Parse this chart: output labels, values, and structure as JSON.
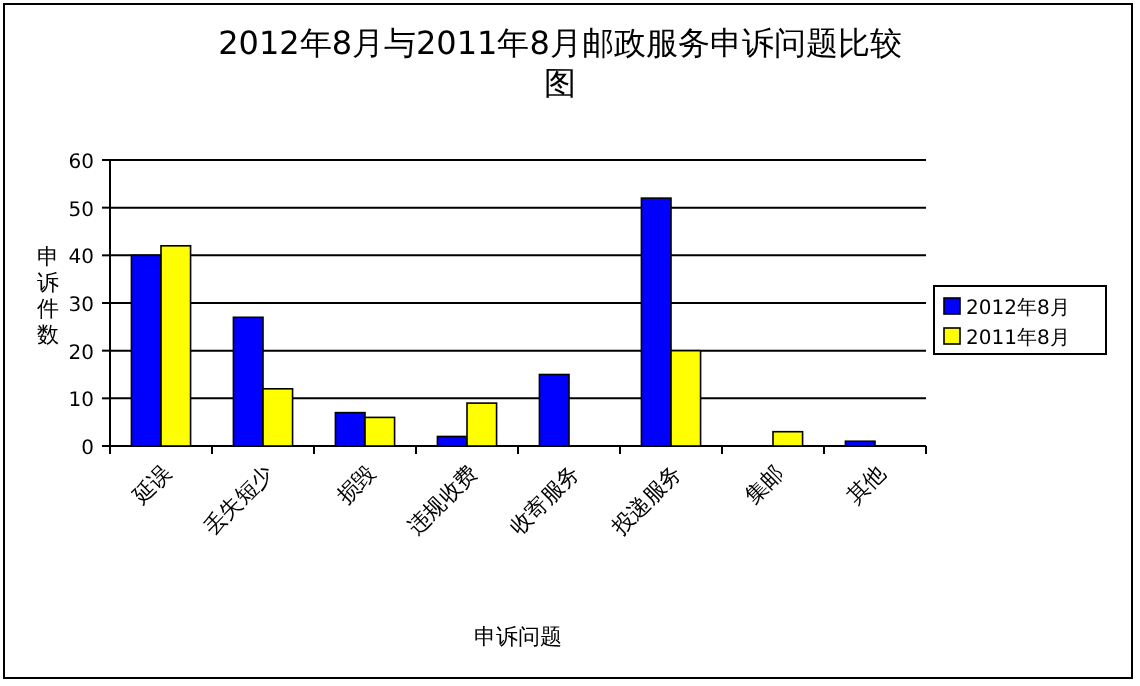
{
  "chart_data": {
    "type": "bar",
    "title": "2012年8月与2011年8月邮政服务申诉问题比较图",
    "xlabel": "申诉问题",
    "ylabel": "申诉件数",
    "categories": [
      "延误",
      "丢失短少",
      "损毁",
      "违规收费",
      "收寄服务",
      "投递服务",
      "集邮",
      "其他"
    ],
    "series": [
      {
        "name": "2012年8月",
        "color": "#0000ff",
        "values": [
          40,
          27,
          7,
          2,
          15,
          52,
          0,
          1
        ]
      },
      {
        "name": "2011年8月",
        "color": "#ffff00",
        "values": [
          42,
          12,
          6,
          9,
          0,
          20,
          3,
          0
        ]
      }
    ],
    "ylim": [
      0,
      60
    ],
    "yticks": [
      0,
      10,
      20,
      30,
      40,
      50,
      60
    ],
    "grid": "y",
    "legend": "right"
  }
}
